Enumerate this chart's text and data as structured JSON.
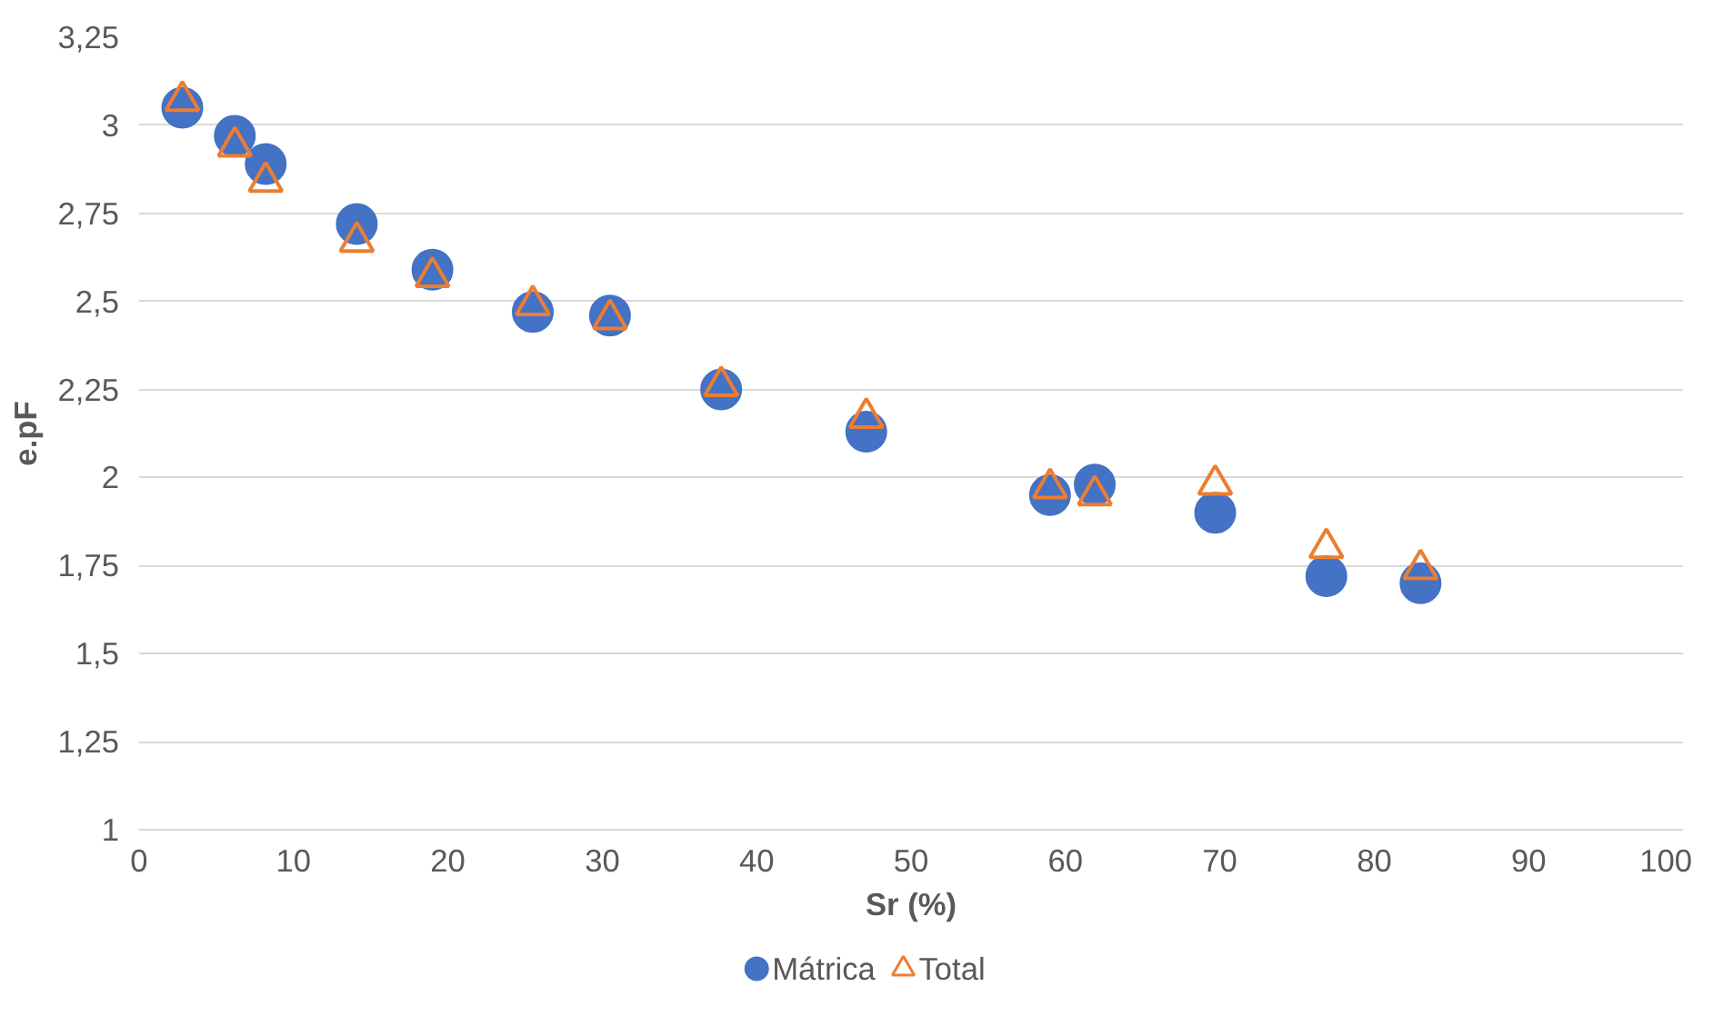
{
  "chart_data": {
    "type": "scatter",
    "xlabel": "Sr (%)",
    "ylabel": "e.pF",
    "xlim": [
      0,
      100
    ],
    "xticks": [
      0,
      10,
      20,
      30,
      40,
      50,
      60,
      70,
      80,
      90,
      100
    ],
    "ylim": [
      1,
      3.25
    ],
    "yticks": [
      {
        "value": 1,
        "label": "1"
      },
      {
        "value": 1.25,
        "label": "1,25"
      },
      {
        "value": 1.5,
        "label": "1,5"
      },
      {
        "value": 1.75,
        "label": "1,75"
      },
      {
        "value": 2,
        "label": "2"
      },
      {
        "value": 2.25,
        "label": "2,25"
      },
      {
        "value": 2.5,
        "label": "2,5"
      },
      {
        "value": 2.75,
        "label": "2,75"
      },
      {
        "value": 3,
        "label": "3"
      },
      {
        "value": 3.25,
        "label": "3,25"
      }
    ],
    "grid": "y",
    "legend": "bottom",
    "x": [
      2.8,
      6.2,
      8.2,
      14.1,
      19.0,
      25.5,
      30.5,
      37.7,
      47.1,
      59.0,
      61.9,
      69.7,
      76.9,
      83.0
    ],
    "series": [
      {
        "name": "Mátrica",
        "color": "#4472c4",
        "marker": "circle",
        "values": [
          3.05,
          2.97,
          2.89,
          2.72,
          2.59,
          2.47,
          2.46,
          2.25,
          2.13,
          1.95,
          1.98,
          1.9,
          1.72,
          1.7
        ]
      },
      {
        "name": "Total",
        "color": "#ed7d31",
        "marker": "triangle",
        "values": [
          3.07,
          2.94,
          2.84,
          2.67,
          2.57,
          2.49,
          2.45,
          2.26,
          2.17,
          1.97,
          1.95,
          1.98,
          1.8,
          1.74
        ]
      }
    ]
  }
}
